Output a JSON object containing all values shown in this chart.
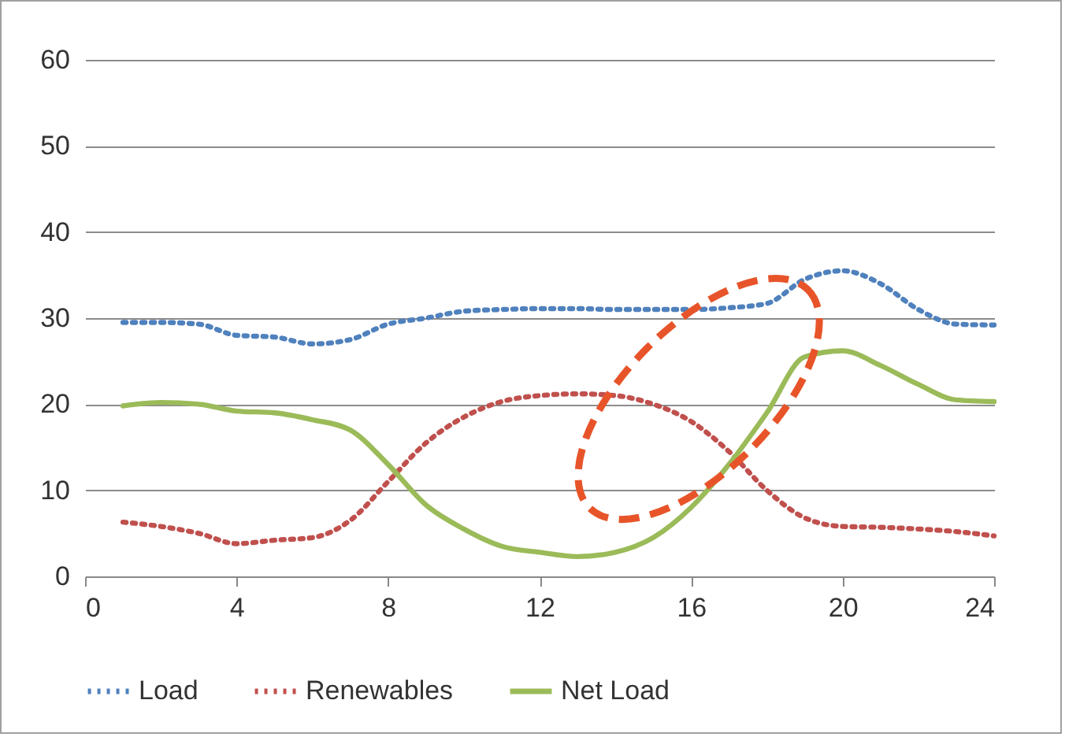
{
  "chart_data": {
    "type": "line",
    "x": [
      1,
      2,
      3,
      4,
      5,
      6,
      7,
      8,
      9,
      10,
      11,
      12,
      13,
      14,
      15,
      16,
      17,
      18,
      19,
      20,
      21,
      22,
      23,
      24
    ],
    "series": [
      {
        "name": "Load",
        "color": "#4f81bd",
        "line_style": "dotted",
        "values": [
          29.5,
          29.5,
          29.3,
          28,
          27.8,
          27,
          27.5,
          29.3,
          30,
          30.8,
          31,
          31.1,
          31.1,
          31,
          31,
          31,
          31.2,
          31.7,
          34.5,
          35.5,
          34,
          31,
          29.3,
          29.2
        ]
      },
      {
        "name": "Renewables",
        "color": "#c0504d",
        "line_style": "dotted",
        "values": [
          6.3,
          5.8,
          5,
          3.8,
          4.2,
          4.5,
          6.5,
          11,
          15.5,
          18.5,
          20.3,
          21,
          21.2,
          21,
          20,
          18,
          14.5,
          10,
          6.8,
          5.8,
          5.7,
          5.5,
          5.2,
          4.7
        ]
      },
      {
        "name": "Net Load",
        "color": "#9bbb59",
        "line_style": "solid",
        "values": [
          19.8,
          20.2,
          20,
          19.2,
          19,
          18.2,
          17,
          13,
          8.3,
          5.5,
          3.5,
          2.8,
          2.3,
          2.8,
          4.5,
          8,
          13,
          19,
          25.5,
          26.2,
          24.5,
          22.3,
          20.5,
          20.3
        ]
      }
    ],
    "xlim": [
      0,
      24
    ],
    "xticks": [
      0,
      4,
      8,
      12,
      16,
      20,
      24
    ],
    "ylim": [
      0,
      60
    ],
    "yticks": [
      0,
      10,
      20,
      30,
      40,
      50,
      60
    ],
    "grid": "y",
    "legend": "bottom",
    "marker": "none"
  }
}
